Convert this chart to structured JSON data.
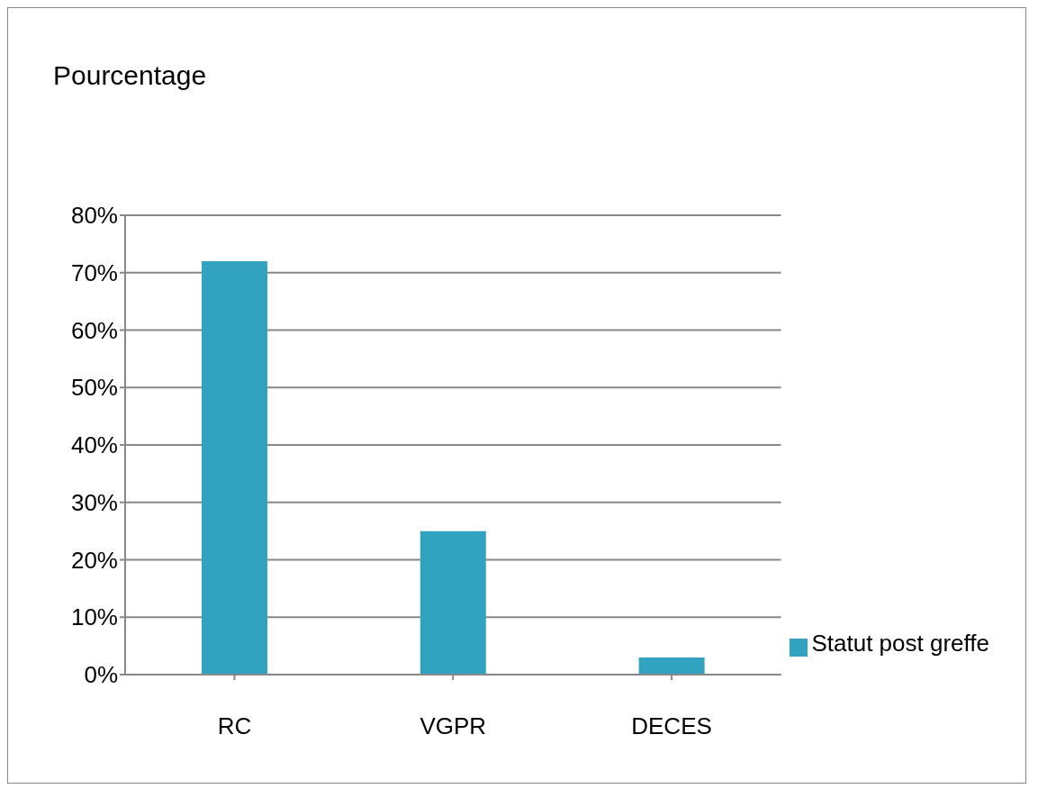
{
  "chart_data": {
    "type": "bar",
    "title": "Pourcentage",
    "categories": [
      "RC",
      "VGPR",
      "DECES"
    ],
    "series": [
      {
        "name": "Statut post greffe",
        "color": "#31a3c0",
        "values": [
          72,
          25,
          3
        ]
      }
    ],
    "ylim": [
      0,
      80
    ],
    "yticks": [
      {
        "value": 0,
        "label": "0%"
      },
      {
        "value": 10,
        "label": "10%"
      },
      {
        "value": 20,
        "label": "20%"
      },
      {
        "value": 30,
        "label": "30%"
      },
      {
        "value": 40,
        "label": "40%"
      },
      {
        "value": 50,
        "label": "50%"
      },
      {
        "value": 60,
        "label": "60%"
      },
      {
        "value": 70,
        "label": "70%"
      },
      {
        "value": 80,
        "label": "80%"
      }
    ],
    "grid": "y",
    "legend": "right"
  }
}
